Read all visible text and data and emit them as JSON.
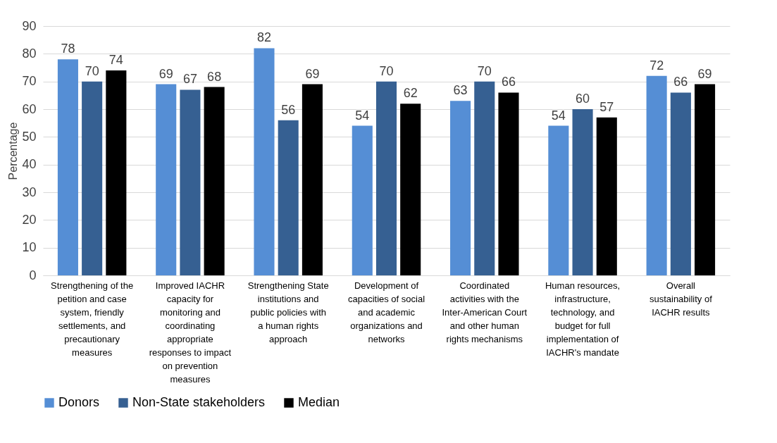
{
  "chart_data": {
    "type": "bar",
    "ylabel": "Percentage",
    "categories": [
      "Strengthening of the petition and case system, friendly settlements, and precautionary measures",
      "Improved IACHR capacity for monitoring and coordinating appropriate responses to impact on prevention measures",
      "Strengthening State institutions and public policies with a human rights approach",
      "Development of capacities of social and academic organizations and networks",
      "Coordinated activities with the Inter-American Court and other human rights mechanisms",
      "Human resources, infrastructure, technology, and budget for full implementation of IACHR's mandate",
      "Overall sustainability of IACHR results"
    ],
    "series": [
      {
        "name": "Donors",
        "color": "#558ed5",
        "values": [
          78,
          69,
          82,
          54,
          63,
          54,
          72
        ]
      },
      {
        "name": "Non-State stakeholders",
        "color": "#366092",
        "values": [
          70,
          67,
          56,
          70,
          70,
          60,
          66
        ]
      },
      {
        "name": "Median",
        "color": "#000000",
        "values": [
          74,
          68,
          69,
          62,
          66,
          57,
          69
        ]
      }
    ],
    "ylim": [
      0,
      90
    ],
    "yticks": [
      0,
      10,
      20,
      30,
      40,
      50,
      60,
      70,
      80,
      90
    ],
    "grid": "y",
    "legend": "bottom",
    "data_labels": true
  }
}
